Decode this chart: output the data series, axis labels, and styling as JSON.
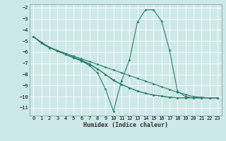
{
  "xlabel": "Humidex (Indice chaleur)",
  "bg_color": "#cce8e8",
  "grid_color": "#ffffff",
  "line_color": "#2e7d6e",
  "xlim": [
    -0.5,
    23.5
  ],
  "ylim": [
    -11.7,
    -1.7
  ],
  "xticks": [
    0,
    1,
    2,
    3,
    4,
    5,
    6,
    7,
    8,
    9,
    10,
    11,
    12,
    13,
    14,
    15,
    16,
    17,
    18,
    19,
    20,
    21,
    22,
    23
  ],
  "yticks": [
    -2,
    -3,
    -4,
    -5,
    -6,
    -7,
    -8,
    -9,
    -10,
    -11
  ],
  "lines": [
    {
      "x": [
        0,
        1,
        2,
        3,
        4,
        5,
        6,
        7,
        8,
        9,
        10,
        11,
        12,
        13,
        14,
        15,
        16,
        17,
        18,
        19,
        20,
        21,
        22,
        23
      ],
      "y": [
        -4.6,
        -5.2,
        -5.6,
        -5.85,
        -6.1,
        -6.35,
        -6.6,
        -6.85,
        -7.1,
        -7.35,
        -7.6,
        -7.85,
        -8.1,
        -8.35,
        -8.6,
        -8.85,
        -9.1,
        -9.35,
        -9.6,
        -9.8,
        -10.0,
        -10.05,
        -10.1,
        -10.1
      ]
    },
    {
      "x": [
        0,
        1,
        2,
        3,
        4,
        5,
        6,
        7,
        8,
        9,
        10,
        11,
        12,
        13,
        14,
        15,
        16,
        17,
        18,
        19,
        20,
        21,
        22,
        23
      ],
      "y": [
        -4.6,
        -5.2,
        -5.6,
        -5.9,
        -6.2,
        -6.5,
        -6.75,
        -7.1,
        -7.5,
        -8.0,
        -8.5,
        -8.9,
        -9.2,
        -9.5,
        -9.7,
        -9.85,
        -9.95,
        -10.05,
        -10.1,
        -10.1,
        -10.1,
        -10.1,
        -10.1,
        -10.1
      ]
    },
    {
      "x": [
        0,
        1,
        2,
        3,
        4,
        5,
        6,
        7,
        8,
        9,
        10,
        11,
        12,
        13,
        14,
        15,
        16,
        17,
        18,
        19,
        20,
        21,
        22,
        23
      ],
      "y": [
        -4.6,
        -5.1,
        -5.55,
        -5.85,
        -6.2,
        -6.5,
        -6.8,
        -7.2,
        -7.85,
        -9.3,
        -11.3,
        -8.6,
        -6.7,
        -3.3,
        -2.2,
        -2.2,
        -3.2,
        -5.8,
        -9.5,
        -10.0,
        -10.1,
        -10.1,
        -10.1,
        -10.1
      ]
    },
    {
      "x": [
        0,
        1,
        2,
        3,
        4,
        5,
        6,
        7,
        8,
        9,
        10,
        11,
        12,
        13,
        14,
        15,
        16,
        17,
        18,
        19,
        20,
        21,
        22,
        23
      ],
      "y": [
        -4.6,
        -5.15,
        -5.6,
        -5.9,
        -6.2,
        -6.45,
        -6.7,
        -7.05,
        -7.5,
        -8.0,
        -8.55,
        -8.9,
        -9.2,
        -9.5,
        -9.7,
        -9.85,
        -9.95,
        -10.05,
        -10.1,
        -10.1,
        -10.1,
        -10.1,
        -10.1,
        -10.1
      ]
    }
  ]
}
